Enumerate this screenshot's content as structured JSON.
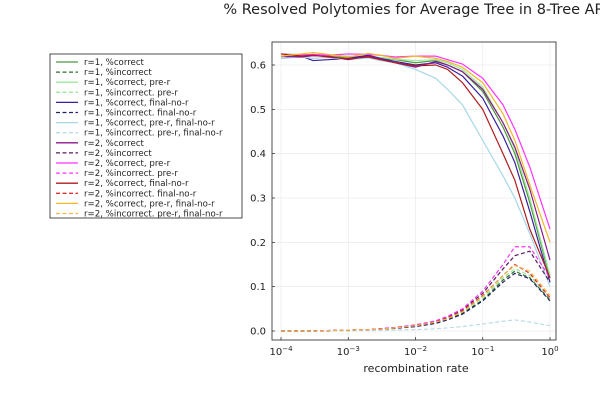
{
  "chart_data": {
    "type": "line",
    "title": "% Resolved Polytomies for Average Tree in 8-Tree AR",
    "xlabel": "recombination rate",
    "ylabel": "",
    "xscale": "log",
    "xlim": [
      0.0001,
      1
    ],
    "ylim": [
      -0.02,
      0.645
    ],
    "grid": true,
    "legend_position": "left-outside",
    "x_ticks": [
      0.0001,
      0.001,
      0.01,
      0.1,
      1
    ],
    "x_tick_labels": [
      {
        "base": "10",
        "exp": "−4"
      },
      {
        "base": "10",
        "exp": "−3"
      },
      {
        "base": "10",
        "exp": "−2"
      },
      {
        "base": "10",
        "exp": "−1"
      },
      {
        "base": "10",
        "exp": "0"
      }
    ],
    "y_ticks": [
      0.0,
      0.1,
      0.2,
      0.3,
      0.4,
      0.5,
      0.6
    ],
    "y_tick_labels": [
      "0.0",
      "0.1",
      "0.2",
      "0.3",
      "0.4",
      "0.5",
      "0.6"
    ],
    "x": [
      0.0001,
      0.0002,
      0.0003,
      0.0005,
      0.001,
      0.002,
      0.003,
      0.005,
      0.01,
      0.02,
      0.03,
      0.05,
      0.1,
      0.2,
      0.3,
      0.5,
      1.0
    ],
    "series": [
      {
        "name": "r=1, %correct",
        "color": "#4d9a41",
        "dash": false,
        "values": [
          0.62,
          0.622,
          0.621,
          0.623,
          0.615,
          0.618,
          0.616,
          0.612,
          0.605,
          0.61,
          0.6,
          0.585,
          0.54,
          0.46,
          0.4,
          0.29,
          0.12
        ]
      },
      {
        "name": "r=1, %incorrect",
        "color": "#2b6e2b",
        "dash": true,
        "values": [
          0.0,
          0.0,
          0.0,
          0.001,
          0.002,
          0.003,
          0.005,
          0.007,
          0.011,
          0.018,
          0.026,
          0.04,
          0.07,
          0.115,
          0.135,
          0.12,
          0.07
        ]
      },
      {
        "name": "r=1, %correct, pre-r",
        "color": "#9be89b",
        "dash": false,
        "values": [
          0.625,
          0.624,
          0.623,
          0.622,
          0.62,
          0.618,
          0.617,
          0.613,
          0.61,
          0.612,
          0.605,
          0.59,
          0.55,
          0.47,
          0.41,
          0.3,
          0.125
        ]
      },
      {
        "name": "r=1, %incorrect. pre-r",
        "color": "#9be89b",
        "dash": true,
        "values": [
          0.0,
          0.0,
          0.0,
          0.001,
          0.002,
          0.003,
          0.005,
          0.007,
          0.012,
          0.02,
          0.028,
          0.043,
          0.075,
          0.12,
          0.14,
          0.125,
          0.075
        ]
      },
      {
        "name": "r=1, %correct, final-no-r",
        "color": "#3a1ea0",
        "dash": false,
        "values": [
          0.615,
          0.62,
          0.61,
          0.612,
          0.615,
          0.622,
          0.615,
          0.608,
          0.6,
          0.605,
          0.595,
          0.575,
          0.525,
          0.44,
          0.38,
          0.27,
          0.11
        ]
      },
      {
        "name": "r=1, %incorrect. final-no-r",
        "color": "#222266",
        "dash": true,
        "values": [
          0.0,
          0.0,
          0.0,
          0.0,
          0.001,
          0.002,
          0.004,
          0.006,
          0.01,
          0.017,
          0.025,
          0.038,
          0.068,
          0.11,
          0.13,
          0.118,
          0.068
        ]
      },
      {
        "name": "r=1, %correct, pre-r, final-no-r",
        "color": "#a6d8e6",
        "dash": false,
        "values": [
          0.615,
          0.618,
          0.615,
          0.617,
          0.612,
          0.616,
          0.61,
          0.605,
          0.59,
          0.57,
          0.545,
          0.51,
          0.43,
          0.35,
          0.3,
          0.22,
          0.1
        ]
      },
      {
        "name": "r=1, %incorrect. pre-r, final-no-r",
        "color": "#b9dbe6",
        "dash": true,
        "values": [
          0.0,
          0.0,
          0.0,
          0.0,
          0.0,
          0.001,
          0.001,
          0.002,
          0.003,
          0.005,
          0.007,
          0.01,
          0.016,
          0.022,
          0.025,
          0.02,
          0.012
        ]
      },
      {
        "name": "r=2, %correct",
        "color": "#8b1a8b",
        "dash": false,
        "values": [
          0.62,
          0.618,
          0.621,
          0.62,
          0.612,
          0.62,
          0.614,
          0.605,
          0.595,
          0.608,
          0.6,
          0.585,
          0.545,
          0.47,
          0.415,
          0.32,
          0.16
        ]
      },
      {
        "name": "r=2, %incorrect",
        "color": "#5a1a5a",
        "dash": true,
        "values": [
          0.0,
          0.0,
          0.0,
          0.001,
          0.002,
          0.003,
          0.005,
          0.008,
          0.013,
          0.022,
          0.031,
          0.048,
          0.085,
          0.14,
          0.17,
          0.18,
          0.11
        ]
      },
      {
        "name": "r=2, %correct, pre-r",
        "color": "#ff33ff",
        "dash": false,
        "values": [
          0.625,
          0.622,
          0.624,
          0.622,
          0.625,
          0.624,
          0.622,
          0.618,
          0.62,
          0.62,
          0.612,
          0.602,
          0.57,
          0.51,
          0.455,
          0.37,
          0.23
        ]
      },
      {
        "name": "r=2, %incorrect. pre-r",
        "color": "#ff33ff",
        "dash": true,
        "values": [
          0.0,
          0.0,
          0.0,
          0.001,
          0.002,
          0.003,
          0.005,
          0.008,
          0.014,
          0.023,
          0.033,
          0.05,
          0.09,
          0.15,
          0.19,
          0.19,
          0.12
        ]
      },
      {
        "name": "r=2, %correct, final-no-r",
        "color": "#b01c1c",
        "dash": false,
        "values": [
          0.625,
          0.62,
          0.622,
          0.618,
          0.614,
          0.618,
          0.612,
          0.605,
          0.598,
          0.6,
          0.59,
          0.56,
          0.5,
          0.4,
          0.34,
          0.23,
          0.12
        ]
      },
      {
        "name": "r=2, %incorrect. final-no-r",
        "color": "#e03030",
        "dash": true,
        "values": [
          0.0,
          0.0,
          0.0,
          0.001,
          0.002,
          0.003,
          0.004,
          0.007,
          0.012,
          0.02,
          0.029,
          0.045,
          0.08,
          0.125,
          0.15,
          0.13,
          0.075
        ]
      },
      {
        "name": "r=2, %correct, pre-r, final-no-r",
        "color": "#f2b72a",
        "dash": false,
        "values": [
          0.62,
          0.625,
          0.628,
          0.624,
          0.618,
          0.626,
          0.622,
          0.615,
          0.62,
          0.615,
          0.608,
          0.595,
          0.56,
          0.49,
          0.43,
          0.33,
          0.2
        ]
      },
      {
        "name": "r=2, %incorrect. pre-r, final-no-r",
        "color": "#f0b840",
        "dash": true,
        "values": [
          0.0,
          0.0,
          0.0,
          0.001,
          0.002,
          0.003,
          0.004,
          0.007,
          0.012,
          0.02,
          0.028,
          0.043,
          0.078,
          0.125,
          0.148,
          0.135,
          0.08
        ]
      }
    ]
  }
}
